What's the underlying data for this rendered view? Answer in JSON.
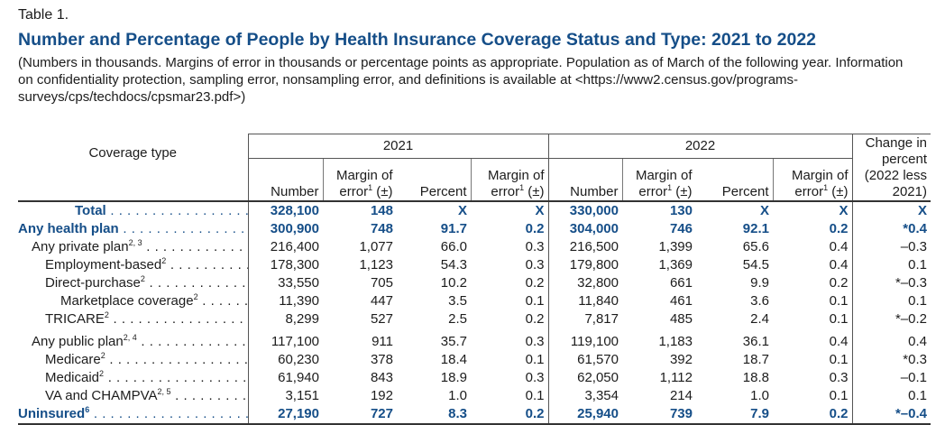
{
  "header": {
    "label": "Table 1.",
    "title": "Number and Percentage of People by Health Insurance Coverage Status and Type: 2021 to 2022",
    "note": "(Numbers in thousands. Margins of error in thousands or percentage points as appropriate. Population as of March of the following year. Information on confidentiality protection, sampling error, nonsampling error, and definitions is available at <https://www2.census.gov/programs-surveys/cps/techdocs/cpsmar23.pdf>)"
  },
  "table": {
    "stub_header": "Coverage type",
    "groups": [
      "2021",
      "2022"
    ],
    "change_header": "Change in percent (2022 less 2021)",
    "columns": [
      {
        "text": "Number"
      },
      {
        "text": "Margin of error",
        "note": "1",
        "suffix": " (±)"
      },
      {
        "text": "Percent"
      },
      {
        "text": "Margin of error",
        "note": "1",
        "suffix": " (±)"
      }
    ],
    "rows": [
      {
        "label": "Total",
        "level": 0,
        "values": [
          "328,100",
          "148",
          "X",
          "X",
          "330,000",
          "130",
          "X",
          "X",
          "X"
        ]
      },
      {
        "label": "Any health plan",
        "level": 0,
        "values": [
          "300,900",
          "748",
          "91.7",
          "0.2",
          "304,000",
          "746",
          "92.1",
          "0.2",
          "*0.4"
        ]
      },
      {
        "label": "Any private plan",
        "notes": "2, 3",
        "level": 1,
        "values": [
          "216,400",
          "1,077",
          "66.0",
          "0.3",
          "216,500",
          "1,399",
          "65.6",
          "0.4",
          "–0.3"
        ]
      },
      {
        "label": "Employment-based",
        "notes": "2",
        "level": 2,
        "values": [
          "178,300",
          "1,123",
          "54.3",
          "0.3",
          "179,800",
          "1,369",
          "54.5",
          "0.4",
          "0.1"
        ]
      },
      {
        "label": "Direct-purchase",
        "notes": "2",
        "level": 2,
        "values": [
          "33,550",
          "705",
          "10.2",
          "0.2",
          "32,800",
          "661",
          "9.9",
          "0.2",
          "*–0.3"
        ]
      },
      {
        "label": "Marketplace coverage",
        "notes": "2",
        "level": 3,
        "values": [
          "11,390",
          "447",
          "3.5",
          "0.1",
          "11,840",
          "461",
          "3.6",
          "0.1",
          "0.1"
        ]
      },
      {
        "label": "TRICARE",
        "notes": "2",
        "level": 2,
        "values": [
          "8,299",
          "527",
          "2.5",
          "0.2",
          "7,817",
          "485",
          "2.4",
          "0.1",
          "*–0.2"
        ]
      },
      {
        "label": "Any public plan",
        "notes": "2, 4",
        "level": 1,
        "values": [
          "117,100",
          "911",
          "35.7",
          "0.3",
          "119,100",
          "1,183",
          "36.1",
          "0.4",
          "0.4"
        ]
      },
      {
        "label": "Medicare",
        "notes": "2",
        "level": 2,
        "values": [
          "60,230",
          "378",
          "18.4",
          "0.1",
          "61,570",
          "392",
          "18.7",
          "0.1",
          "*0.3"
        ]
      },
      {
        "label": "Medicaid",
        "notes": "2",
        "level": 2,
        "values": [
          "61,940",
          "843",
          "18.9",
          "0.3",
          "62,050",
          "1,112",
          "18.8",
          "0.3",
          "–0.1"
        ]
      },
      {
        "label": "VA and CHAMPVA",
        "notes": "2, 5",
        "level": 2,
        "values": [
          "3,151",
          "192",
          "1.0",
          "0.1",
          "3,354",
          "214",
          "1.0",
          "0.1",
          "0.1"
        ]
      },
      {
        "label": "Uninsured",
        "notes": "6",
        "level": 0,
        "values": [
          "27,190",
          "727",
          "8.3",
          "0.2",
          "25,940",
          "739",
          "7.9",
          "0.2",
          "*–0.4"
        ]
      }
    ]
  }
}
